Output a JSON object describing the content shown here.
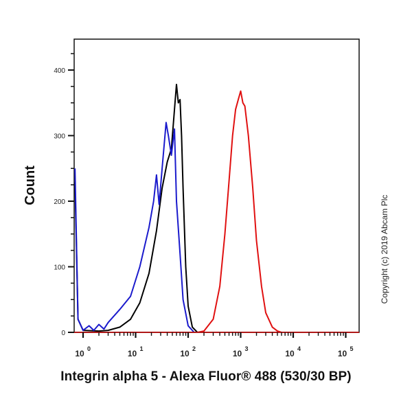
{
  "chart_data": {
    "type": "line",
    "subtype": "flow cytometry histogram overlay",
    "title": "",
    "xlabel": "Integrin alpha 5 - Alexa Fluor® 488 (530/30 BP)",
    "ylabel": "Count",
    "xscale": "log",
    "xlim": [
      0.7,
      200000
    ],
    "ylim": [
      0,
      470
    ],
    "y_ticks": [
      0,
      100,
      200,
      300,
      400
    ],
    "x_ticks": [
      "10^0",
      "10^1",
      "10^2",
      "10^3",
      "10^4",
      "10^5"
    ],
    "grid": false,
    "legend": null,
    "annotation": "Copyright (c) 2019 Abcam Plc",
    "series": [
      {
        "name": "black",
        "color": "#000000",
        "x": [
          0.7,
          0.8,
          1,
          2,
          3,
          5,
          8,
          12,
          18,
          25,
          32,
          40,
          48,
          55,
          60,
          65,
          70,
          75,
          80,
          90,
          100,
          120,
          150
        ],
        "y": [
          230,
          20,
          3,
          2,
          3,
          8,
          20,
          45,
          90,
          155,
          220,
          260,
          280,
          340,
          378,
          350,
          355,
          300,
          220,
          100,
          40,
          8,
          0
        ]
      },
      {
        "name": "blue",
        "color": "#1a1acc",
        "x": [
          0.7,
          0.8,
          1,
          1.3,
          1.6,
          2,
          2.5,
          3,
          5,
          8,
          12,
          18,
          22,
          25,
          28,
          32,
          38,
          42,
          48,
          55,
          60,
          70,
          80,
          100,
          130
        ],
        "y": [
          250,
          20,
          3,
          10,
          3,
          12,
          5,
          15,
          35,
          55,
          100,
          160,
          200,
          240,
          195,
          250,
          320,
          300,
          270,
          310,
          200,
          120,
          50,
          10,
          0
        ]
      },
      {
        "name": "red",
        "color": "#e01010",
        "x": [
          150,
          200,
          300,
          400,
          500,
          600,
          700,
          800,
          900,
          1000,
          1100,
          1200,
          1400,
          1700,
          2000,
          2500,
          3000,
          4000,
          5000,
          6000
        ],
        "y": [
          0,
          2,
          20,
          70,
          150,
          230,
          300,
          340,
          355,
          368,
          350,
          345,
          300,
          220,
          140,
          70,
          30,
          8,
          2,
          0
        ]
      }
    ]
  }
}
